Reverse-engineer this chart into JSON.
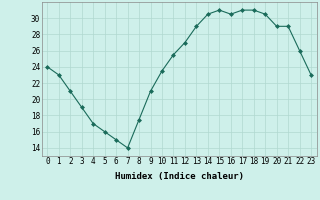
{
  "x": [
    0,
    1,
    2,
    3,
    4,
    5,
    6,
    7,
    8,
    9,
    10,
    11,
    12,
    13,
    14,
    15,
    16,
    17,
    18,
    19,
    20,
    21,
    22,
    23
  ],
  "y": [
    24,
    23,
    21,
    19,
    17,
    16,
    15,
    14,
    17.5,
    21,
    23.5,
    25.5,
    27,
    29,
    30.5,
    31,
    30.5,
    31,
    31,
    30.5,
    29,
    29,
    26,
    23
  ],
  "line_color": "#1a6b5a",
  "marker": "D",
  "marker_size": 2.0,
  "bg_color": "#cef0ea",
  "grid_color": "#b0d8d0",
  "xlabel": "Humidex (Indice chaleur)",
  "ylim": [
    13,
    32
  ],
  "xlim": [
    -0.5,
    23.5
  ],
  "yticks": [
    14,
    16,
    18,
    20,
    22,
    24,
    26,
    28,
    30
  ],
  "xtick_labels": [
    "0",
    "1",
    "2",
    "3",
    "4",
    "5",
    "6",
    "7",
    "8",
    "9",
    "10",
    "11",
    "12",
    "13",
    "14",
    "15",
    "16",
    "17",
    "18",
    "19",
    "20",
    "21",
    "22",
    "23"
  ],
  "label_fontsize": 6.5,
  "tick_fontsize": 5.5
}
